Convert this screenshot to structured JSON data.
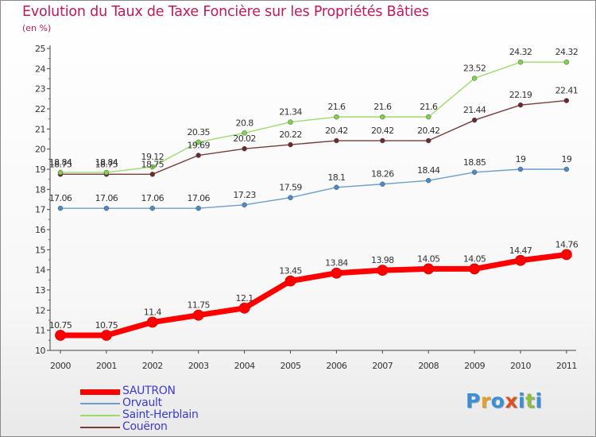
{
  "title": "Evolution du Taux de Taxe Foncière sur les Propriétés Bâties",
  "subtitle": "(en %)",
  "logo_text": "Proxiti",
  "chart_data": {
    "type": "line",
    "title": "Evolution du Taux de Taxe Foncière sur les Propriétés Bâties",
    "ylabel": "(en %)",
    "xlabel": "",
    "x": [
      "2000",
      "2001",
      "2002",
      "2003",
      "2004",
      "2005",
      "2006",
      "2007",
      "2008",
      "2009",
      "2010",
      "2011"
    ],
    "ylim": [
      10,
      25
    ],
    "yticks": [
      "10",
      "11",
      "12",
      "13",
      "14",
      "15",
      "16",
      "17",
      "18",
      "19",
      "20",
      "21",
      "22",
      "23",
      "24",
      "25"
    ],
    "grid": false,
    "legend_position": "bottom-left",
    "series": [
      {
        "name": "SAUTRON",
        "color": "#ff0000",
        "marker_color": "#ff0000",
        "values": [
          10.75,
          10.75,
          11.4,
          11.75,
          12.1,
          13.45,
          13.84,
          13.98,
          14.05,
          14.05,
          14.47,
          14.76
        ],
        "labels": [
          "10.75",
          "10.75",
          "11.4",
          "11.75",
          "12.1",
          "13.45",
          "13.84",
          "13.98",
          "14.05",
          "14.05",
          "14.47",
          "14.76"
        ]
      },
      {
        "name": "Orvault",
        "color": "#6a9fcf",
        "marker_color": "#4a8ac6",
        "values": [
          17.06,
          17.06,
          17.06,
          17.06,
          17.23,
          17.59,
          18.1,
          18.26,
          18.44,
          18.85,
          19,
          19
        ],
        "labels": [
          "17.06",
          "17.06",
          "17.06",
          "17.06",
          "17.23",
          "17.59",
          "18.1",
          "18.26",
          "18.44",
          "18.85",
          "19",
          "19"
        ]
      },
      {
        "name": "Saint-Herblain",
        "color": "#9bdc6a",
        "marker_color": "#7fd04a",
        "values": [
          18.84,
          18.84,
          19.12,
          20.35,
          20.8,
          21.34,
          21.6,
          21.6,
          21.6,
          23.52,
          24.32,
          24.32
        ],
        "labels": [
          "18.84",
          "18.84",
          "19.12",
          "20.35",
          "20.8",
          "21.34",
          "21.6",
          "21.6",
          "21.6",
          "23.52",
          "24.32",
          "24.32"
        ]
      },
      {
        "name": "Couëron",
        "color": "#7a3b3b",
        "marker_color": "#6b2a2a",
        "values": [
          18.75,
          18.75,
          18.75,
          19.69,
          20.02,
          20.22,
          20.42,
          20.42,
          20.42,
          21.44,
          22.19,
          22.41
        ],
        "labels": [
          "18.75",
          "18.75",
          "18.75",
          "19.69",
          "20.02",
          "20.22",
          "20.42",
          "20.42",
          "20.42",
          "21.44",
          "22.19",
          "22.41"
        ]
      }
    ]
  }
}
